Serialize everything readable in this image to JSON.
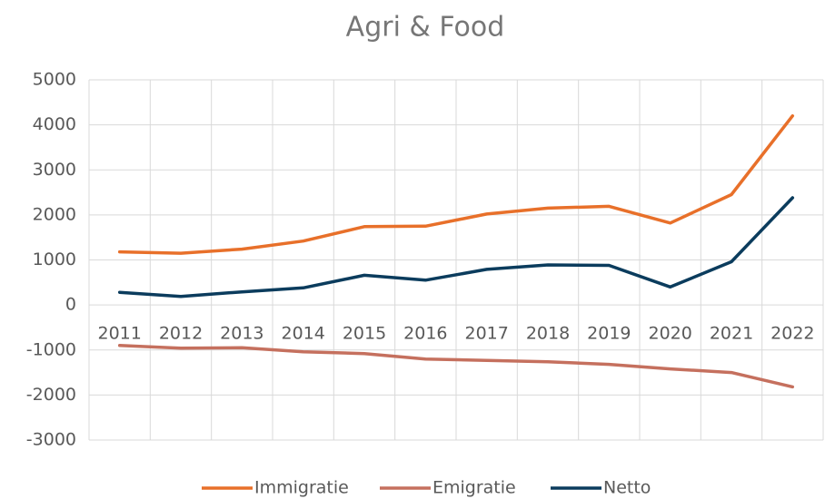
{
  "chart_data": {
    "type": "line",
    "title": "Agri & Food",
    "categories": [
      "2011",
      "2012",
      "2013",
      "2014",
      "2015",
      "2016",
      "2017",
      "2018",
      "2019",
      "2020",
      "2021",
      "2022"
    ],
    "series": [
      {
        "name": "Immigratie",
        "color": "#e8702a",
        "values": [
          1180,
          1150,
          1240,
          1420,
          1740,
          1750,
          2020,
          2150,
          2190,
          1820,
          2450,
          4200
        ]
      },
      {
        "name": "Emigratie",
        "color": "#c5705e",
        "values": [
          -900,
          -960,
          -950,
          -1040,
          -1080,
          -1200,
          -1230,
          -1260,
          -1320,
          -1420,
          -1500,
          -1820
        ]
      },
      {
        "name": "Netto",
        "color": "#0b3c5d",
        "values": [
          280,
          190,
          290,
          380,
          660,
          550,
          790,
          890,
          880,
          400,
          960,
          2380
        ]
      }
    ],
    "ylim": [
      -3000,
      5000
    ],
    "yticks": [
      -3000,
      -2000,
      -1000,
      0,
      1000,
      2000,
      3000,
      4000,
      5000
    ],
    "grid": true,
    "legend": "bottom"
  }
}
